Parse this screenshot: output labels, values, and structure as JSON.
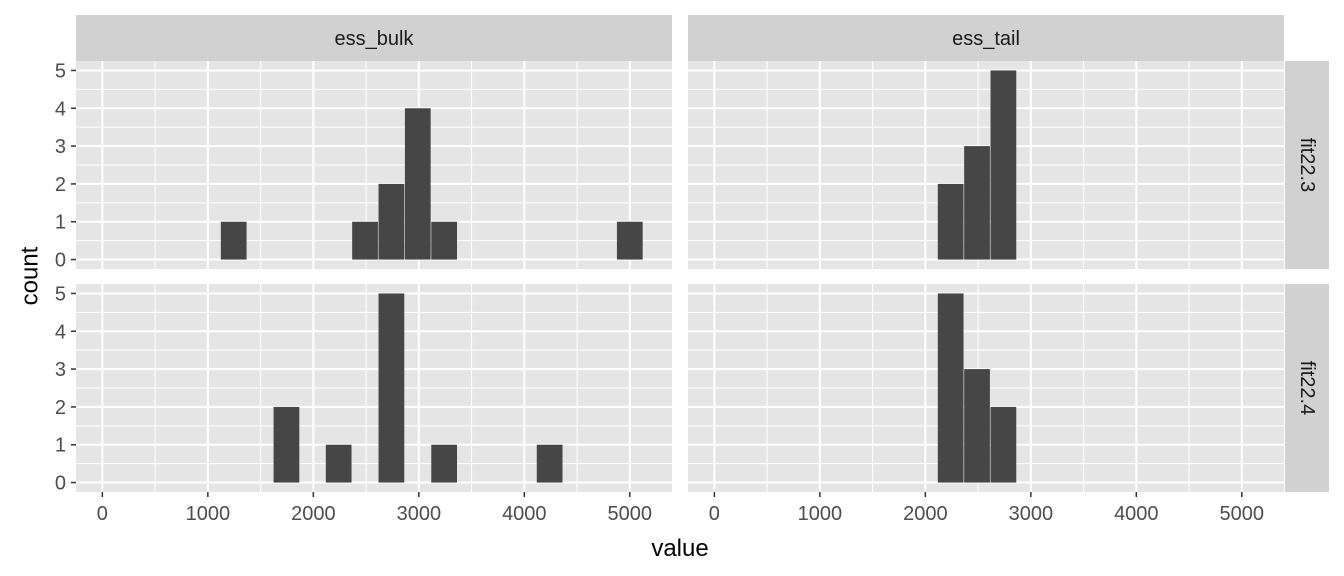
{
  "chart_data": {
    "type": "bar",
    "xlabel": "value",
    "ylabel": "count",
    "xlim": [
      -250,
      5400
    ],
    "ylim": [
      -0.25,
      5.25
    ],
    "bin_width": 244,
    "x_ticks": [
      0,
      1000,
      2000,
      3000,
      4000,
      5000
    ],
    "y_ticks": [
      0,
      1,
      2,
      3,
      4,
      5
    ],
    "col_facets": [
      "ess_bulk",
      "ess_tail"
    ],
    "row_facets": [
      "fit22.3",
      "fit22.4"
    ],
    "grid": true,
    "panels": [
      {
        "col": "ess_bulk",
        "row": "fit22.3",
        "bins": [
          {
            "x": 1245,
            "count": 1
          },
          {
            "x": 2490,
            "count": 1
          },
          {
            "x": 2740,
            "count": 2
          },
          {
            "x": 2990,
            "count": 4
          },
          {
            "x": 3240,
            "count": 1
          },
          {
            "x": 5000,
            "count": 1
          }
        ]
      },
      {
        "col": "ess_tail",
        "row": "fit22.3",
        "bins": [
          {
            "x": 2240,
            "count": 2
          },
          {
            "x": 2490,
            "count": 3
          },
          {
            "x": 2740,
            "count": 5
          }
        ]
      },
      {
        "col": "ess_bulk",
        "row": "fit22.4",
        "bins": [
          {
            "x": 1745,
            "count": 2
          },
          {
            "x": 2240,
            "count": 1
          },
          {
            "x": 2740,
            "count": 5
          },
          {
            "x": 3240,
            "count": 1
          },
          {
            "x": 4240,
            "count": 1
          }
        ]
      },
      {
        "col": "ess_tail",
        "row": "fit22.4",
        "bins": [
          {
            "x": 2240,
            "count": 5
          },
          {
            "x": 2490,
            "count": 3
          },
          {
            "x": 2740,
            "count": 2
          }
        ]
      }
    ],
    "colors": {
      "panel_bg": "#e5e5e5",
      "strip_bg": "#d1d1d1",
      "grid": "#ffffff",
      "bar": "#464646"
    }
  }
}
